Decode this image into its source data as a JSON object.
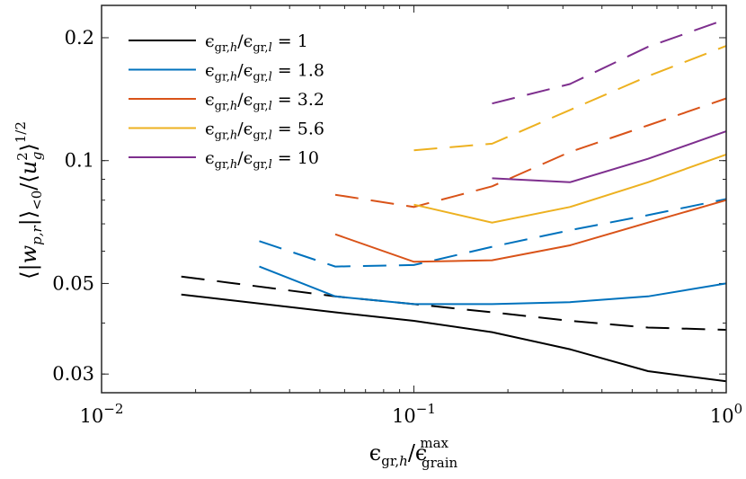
{
  "chart_data": {
    "type": "line",
    "title": "",
    "xlabel": "ϵgr,h/ϵgrain max",
    "ylabel": "⟨|wp,r|⟩<0 / ⟨ug²⟩^1/2",
    "xscale": "log",
    "yscale": "log",
    "xlim": [
      0.01,
      1.0
    ],
    "ylim": [
      0.027,
      0.24
    ],
    "x_tick_labels": [
      {
        "value": 0.01,
        "base": "10",
        "exp": "−2"
      },
      {
        "value": 0.1,
        "base": "10",
        "exp": "−1"
      },
      {
        "value": 1.0,
        "base": "10",
        "exp": "0"
      }
    ],
    "y_ticks": [
      0.03,
      0.05,
      0.1,
      0.2
    ],
    "y_tick_labels": [
      "0.03",
      "0.05",
      "0.1",
      "0.2"
    ],
    "legend": {
      "placement": "top-left",
      "entries": [
        {
          "label": "ϵgr,h/ϵgr,l = 1",
          "num": "1",
          "color": "#000000"
        },
        {
          "label": "ϵgr,h/ϵgr,l = 1.8",
          "num": "1.8",
          "color": "#0072BD"
        },
        {
          "label": "ϵgr,h/ϵgr,l = 3.2",
          "num": "3.2",
          "color": "#D95319"
        },
        {
          "label": "ϵgr,h/ϵgr,l = 5.6",
          "num": "5.6",
          "color": "#EDB120"
        },
        {
          "label": "ϵgr,h/ϵgr,l = 10",
          "num": "10",
          "color": "#7E2F8E"
        }
      ]
    },
    "series": [
      {
        "name": "ratio 1 solid",
        "color": "#000000",
        "dash": false,
        "x": [
          0.018,
          0.056,
          0.1,
          0.178,
          0.316,
          0.562,
          1.0
        ],
        "y": [
          0.047,
          0.0425,
          0.0405,
          0.038,
          0.0345,
          0.0305,
          0.0288
        ]
      },
      {
        "name": "ratio 1 dashed",
        "color": "#000000",
        "dash": true,
        "x": [
          0.018,
          0.056,
          0.1,
          0.178,
          0.316,
          0.562,
          1.0
        ],
        "y": [
          0.052,
          0.0465,
          0.0445,
          0.0425,
          0.0405,
          0.039,
          0.0385
        ]
      },
      {
        "name": "ratio 1.8 solid",
        "color": "#0072BD",
        "dash": false,
        "x": [
          0.032,
          0.056,
          0.1,
          0.178,
          0.316,
          0.562,
          1.0
        ],
        "y": [
          0.055,
          0.0465,
          0.0445,
          0.0445,
          0.045,
          0.0465,
          0.05
        ]
      },
      {
        "name": "ratio 1.8 dashed",
        "color": "#0072BD",
        "dash": true,
        "x": [
          0.032,
          0.056,
          0.1,
          0.178,
          0.316,
          0.562,
          1.0
        ],
        "y": [
          0.0635,
          0.055,
          0.0555,
          0.0615,
          0.0675,
          0.0735,
          0.0805
        ]
      },
      {
        "name": "ratio 3.2 solid",
        "color": "#D95319",
        "dash": false,
        "x": [
          0.056,
          0.1,
          0.178,
          0.316,
          0.562,
          1.0
        ],
        "y": [
          0.066,
          0.0565,
          0.057,
          0.062,
          0.0705,
          0.08
        ]
      },
      {
        "name": "ratio 3.2 dashed",
        "color": "#D95319",
        "dash": true,
        "x": [
          0.056,
          0.1,
          0.178,
          0.316,
          0.562,
          1.0
        ],
        "y": [
          0.0825,
          0.077,
          0.0865,
          0.105,
          0.122,
          0.142
        ]
      },
      {
        "name": "ratio 5.6 solid",
        "color": "#EDB120",
        "dash": false,
        "x": [
          0.1,
          0.178,
          0.316,
          0.562,
          1.0
        ],
        "y": [
          0.078,
          0.0705,
          0.077,
          0.0885,
          0.1035
        ]
      },
      {
        "name": "ratio 5.6 dashed",
        "color": "#EDB120",
        "dash": true,
        "x": [
          0.1,
          0.178,
          0.316,
          0.562,
          1.0
        ],
        "y": [
          0.106,
          0.11,
          0.133,
          0.161,
          0.191
        ]
      },
      {
        "name": "ratio 10 solid",
        "color": "#7E2F8E",
        "dash": false,
        "x": [
          0.178,
          0.316,
          0.562,
          1.0
        ],
        "y": [
          0.0905,
          0.0885,
          0.101,
          0.118
        ]
      },
      {
        "name": "ratio 10 dashed",
        "color": "#7E2F8E",
        "dash": true,
        "x": [
          0.178,
          0.316,
          0.562,
          1.0
        ],
        "y": [
          0.138,
          0.154,
          0.19,
          0.222
        ]
      }
    ]
  }
}
